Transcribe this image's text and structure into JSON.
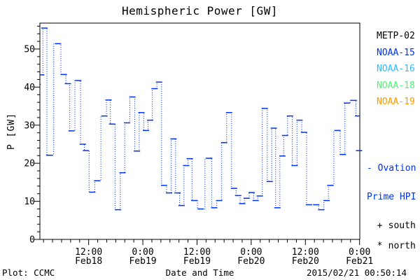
{
  "title": "Hemispheric Power [GW]",
  "footer": {
    "plot_credit": "Plot: CCMC",
    "timestamp": "2015/02/21 00:50:14"
  },
  "legend": {
    "satellites": [
      {
        "label": "METP-02",
        "color": "#000000"
      },
      {
        "label": "NOAA-15",
        "color": "#0033ee"
      },
      {
        "label": "NOAA-16",
        "color": "#33bbff"
      },
      {
        "label": "NOAA-18",
        "color": "#55ee77"
      },
      {
        "label": "NOAA-19",
        "color": "#ff9900"
      }
    ],
    "line_legend": {
      "line1": "- Ovation",
      "line2": "Prime HPI",
      "color": "#0033ee"
    },
    "markers": [
      {
        "symbol": "+",
        "label": "south"
      },
      {
        "symbol": "*",
        "label": "north"
      }
    ]
  },
  "chart_data": {
    "type": "line",
    "style": "dotted step line with solid horizontal dash markers at each data point",
    "title": "Hemispheric Power [GW]",
    "xlabel": "Date and Time",
    "ylabel": "P [GW]",
    "x_epoch": "hours since 2015-02-18 00:00 UT",
    "xlim": [
      1.2,
      72.05
    ],
    "ylim": [
      0,
      56.8
    ],
    "x_major_ticks": [
      12,
      24,
      36,
      48,
      60,
      72
    ],
    "x_tick_labels": [
      [
        "12:00",
        "Feb18"
      ],
      [
        "0:00",
        "Feb19"
      ],
      [
        "12:00",
        "Feb19"
      ],
      [
        "0:00",
        "Feb20"
      ],
      [
        "12:00",
        "Feb20"
      ],
      [
        "0:00",
        "Feb21"
      ]
    ],
    "x_minor_step": 2,
    "y_major_ticks": [
      0,
      10,
      20,
      30,
      40,
      50
    ],
    "y_minor_step": 2,
    "grid": false,
    "legend_position": "right, outside plot box",
    "series": [
      {
        "name": "Ovation Prime HPI",
        "color": "#0033ee",
        "x": [
          0.7,
          1.5,
          2.2,
          3.3,
          5.2,
          6.5,
          7.4,
          8.2,
          9.7,
          10.7,
          11.4,
          12.8,
          13.9,
          15.5,
          16.4,
          17.2,
          18.5,
          19.5,
          20.5,
          21.7,
          22.7,
          23.7,
          24.7,
          25.6,
          26.6,
          27.6,
          28.7,
          29.8,
          30.8,
          31.7,
          32.6,
          33.6,
          34.4,
          35.4,
          36.8,
          38.7,
          39.8,
          40.9,
          42.0,
          43.1,
          44.2,
          45.1,
          46.0,
          47.0,
          48.1,
          49.0,
          49.9,
          51.0,
          52.1,
          53.0,
          53.8,
          54.9,
          55.5,
          56.6,
          57.6,
          58.7,
          59.7,
          60.8,
          62.4,
          63.5,
          64.7,
          65.5,
          67.1,
          68.3,
          69.2,
          70.7,
          71.7
        ],
        "y": [
          40.7,
          43.2,
          55.5,
          22.1,
          51.4,
          43.3,
          40.9,
          28.5,
          41.7,
          25.0,
          23.3,
          12.4,
          15.4,
          32.4,
          36.6,
          30.3,
          7.8,
          17.5,
          30.6,
          37.4,
          23.2,
          33.3,
          28.6,
          31.3,
          39.6,
          41.3,
          14.2,
          12.2,
          26.4,
          12.2,
          8.9,
          19.4,
          21.2,
          10.2,
          8.0,
          21.3,
          8.3,
          10.2,
          25.4,
          33.3,
          13.4,
          11.5,
          9.4,
          10.8,
          12.3,
          10.2,
          11.4,
          34.4,
          15.2,
          29.2,
          8.3,
          21.9,
          27.3,
          32.4,
          19.4,
          31.3,
          28.1,
          9.1,
          9.1,
          7.8,
          10.2,
          14.2,
          28.6,
          22.3,
          35.8,
          36.5,
          32.4
        ]
      }
    ],
    "latest_hpi_axis_marker_gw": 23.3
  }
}
